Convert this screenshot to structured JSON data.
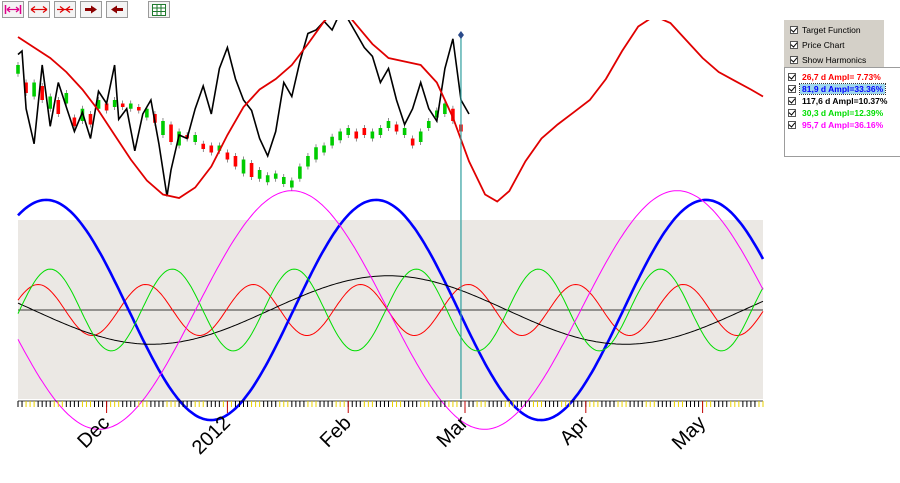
{
  "toolbar": {
    "buttons": [
      {
        "name": "zoom-to-fit-button",
        "icon": "pink-double-arrow-bars-icon",
        "color": "#e0008a"
      },
      {
        "name": "expand-button",
        "icon": "red-double-arrow-icon",
        "color": "#e00000"
      },
      {
        "name": "compress-button",
        "icon": "red-arrows-inward-icon",
        "color": "#e00000"
      },
      {
        "name": "scroll-right-button",
        "icon": "right-arrow-icon",
        "color": "#8b0000"
      },
      {
        "name": "scroll-left-button",
        "icon": "left-arrow-icon",
        "color": "#8b0000"
      },
      {
        "name": "export-excel-button",
        "icon": "spreadsheet-icon",
        "color": "#1f7a2e"
      }
    ]
  },
  "options": [
    {
      "label": "Target Function",
      "checked": true
    },
    {
      "label": "Price Chart",
      "checked": true
    },
    {
      "label": "Show Harmonics",
      "checked": true
    }
  ],
  "harmonics": [
    {
      "label": "26,7 d  Ampl= 7.73%",
      "period": 26.7,
      "amplitude": 7.73,
      "color": "#ff0000",
      "checked": true,
      "selected": false
    },
    {
      "label": "81,9 d  Ampl=33.36%",
      "period": 81.9,
      "amplitude": 33.36,
      "color": "#0000ff",
      "checked": true,
      "selected": true
    },
    {
      "label": "117,6 d  Ampl=10.37%",
      "period": 117.6,
      "amplitude": 10.37,
      "color": "#000000",
      "checked": true,
      "selected": false
    },
    {
      "label": "30,3 d  Ampl=12.39%",
      "period": 30.3,
      "amplitude": 12.39,
      "color": "#00dd00",
      "checked": true,
      "selected": false
    },
    {
      "label": "95,7 d  Ampl=36.16%",
      "period": 95.7,
      "amplitude": 36.16,
      "color": "#ff00ff",
      "checked": true,
      "selected": false
    }
  ],
  "axis": {
    "month_labels": [
      "Dec",
      "2012",
      "Feb",
      "Mar",
      "Apr",
      "May"
    ]
  },
  "colors": {
    "price_line": "#000000",
    "target_function": "#e00000",
    "candle_up": "#00cc00",
    "candle_down": "#ff0000",
    "cursor": "#2f9f9f",
    "harmonics_background": "#ebe8e4"
  },
  "chart_data": {
    "type": "line",
    "x_range_days": [
      0,
      185
    ],
    "cursor_day": 110,
    "price_series": [
      [
        0,
        0.86
      ],
      [
        1,
        0.88
      ],
      [
        2,
        0.55
      ],
      [
        4,
        0.35
      ],
      [
        6,
        0.8
      ],
      [
        8,
        0.45
      ],
      [
        10,
        0.7
      ],
      [
        12,
        0.56
      ],
      [
        14,
        0.42
      ],
      [
        16,
        0.53
      ],
      [
        18,
        0.38
      ],
      [
        20,
        0.65
      ],
      [
        22,
        0.58
      ],
      [
        24,
        0.8
      ],
      [
        25,
        0.49
      ],
      [
        27,
        0.55
      ],
      [
        29,
        0.31
      ],
      [
        31,
        0.52
      ],
      [
        33,
        0.6
      ],
      [
        35,
        0.35
      ],
      [
        37,
        0.05
      ],
      [
        38,
        0.2
      ],
      [
        40,
        0.4
      ],
      [
        42,
        0.38
      ],
      [
        44,
        0.55
      ],
      [
        46,
        0.68
      ],
      [
        48,
        0.52
      ],
      [
        50,
        0.78
      ],
      [
        52,
        0.9
      ],
      [
        54,
        0.72
      ],
      [
        56,
        0.6
      ],
      [
        58,
        0.54
      ],
      [
        60,
        0.38
      ],
      [
        62,
        0.28
      ],
      [
        64,
        0.42
      ],
      [
        66,
        0.7
      ],
      [
        68,
        0.62
      ],
      [
        70,
        0.82
      ],
      [
        72,
        0.98
      ],
      [
        74,
        1.0
      ],
      [
        76,
        1.05
      ],
      [
        78,
        1.0
      ],
      [
        80,
        1.1
      ],
      [
        82,
        1.06
      ],
      [
        84,
        0.98
      ],
      [
        86,
        0.9
      ],
      [
        88,
        0.85
      ],
      [
        90,
        0.7
      ],
      [
        92,
        0.78
      ],
      [
        94,
        0.6
      ],
      [
        96,
        0.46
      ],
      [
        98,
        0.55
      ],
      [
        100,
        0.7
      ],
      [
        102,
        0.55
      ],
      [
        104,
        0.48
      ],
      [
        106,
        0.78
      ],
      [
        108,
        0.95
      ],
      [
        110,
        0.6
      ],
      [
        112,
        0.52
      ]
    ],
    "candles": [
      [
        0,
        0.75,
        0.8
      ],
      [
        2,
        0.7,
        0.64
      ],
      [
        4,
        0.62,
        0.7
      ],
      [
        6,
        0.68,
        0.6
      ],
      [
        8,
        0.55,
        0.62
      ],
      [
        10,
        0.6,
        0.52
      ],
      [
        12,
        0.58,
        0.64
      ],
      [
        14,
        0.5,
        0.45
      ],
      [
        16,
        0.48,
        0.55
      ],
      [
        18,
        0.52,
        0.46
      ],
      [
        20,
        0.55,
        0.6
      ],
      [
        22,
        0.58,
        0.54
      ],
      [
        24,
        0.56,
        0.6
      ],
      [
        26,
        0.58,
        0.56
      ],
      [
        28,
        0.55,
        0.58
      ],
      [
        30,
        0.56,
        0.54
      ],
      [
        32,
        0.5,
        0.55
      ],
      [
        34,
        0.52,
        0.47
      ],
      [
        36,
        0.4,
        0.48
      ],
      [
        38,
        0.46,
        0.36
      ],
      [
        40,
        0.34,
        0.42
      ],
      [
        42,
        0.4,
        0.38
      ],
      [
        44,
        0.36,
        0.4
      ],
      [
        46,
        0.35,
        0.32
      ],
      [
        48,
        0.34,
        0.3
      ],
      [
        50,
        0.31,
        0.34
      ],
      [
        52,
        0.3,
        0.26
      ],
      [
        54,
        0.28,
        0.22
      ],
      [
        56,
        0.18,
        0.26
      ],
      [
        58,
        0.24,
        0.16
      ],
      [
        60,
        0.15,
        0.2
      ],
      [
        62,
        0.13,
        0.17
      ],
      [
        64,
        0.15,
        0.18
      ],
      [
        66,
        0.12,
        0.16
      ],
      [
        68,
        0.1,
        0.14
      ],
      [
        70,
        0.15,
        0.22
      ],
      [
        72,
        0.22,
        0.28
      ],
      [
        74,
        0.26,
        0.33
      ],
      [
        76,
        0.3,
        0.34
      ],
      [
        78,
        0.34,
        0.39
      ],
      [
        80,
        0.37,
        0.42
      ],
      [
        82,
        0.4,
        0.44
      ],
      [
        84,
        0.42,
        0.38
      ],
      [
        86,
        0.44,
        0.4
      ],
      [
        88,
        0.38,
        0.42
      ],
      [
        90,
        0.4,
        0.44
      ],
      [
        92,
        0.44,
        0.48
      ],
      [
        94,
        0.46,
        0.42
      ],
      [
        96,
        0.4,
        0.44
      ],
      [
        98,
        0.38,
        0.34
      ],
      [
        100,
        0.36,
        0.42
      ],
      [
        102,
        0.44,
        0.48
      ],
      [
        104,
        0.5,
        0.54
      ],
      [
        106,
        0.52,
        0.58
      ],
      [
        108,
        0.55,
        0.48
      ],
      [
        110,
        0.46,
        0.42
      ]
    ],
    "target_function": [
      [
        0,
        0.96
      ],
      [
        4,
        0.9
      ],
      [
        8,
        0.84
      ],
      [
        12,
        0.76
      ],
      [
        16,
        0.66
      ],
      [
        20,
        0.54
      ],
      [
        24,
        0.4
      ],
      [
        28,
        0.26
      ],
      [
        32,
        0.14
      ],
      [
        36,
        0.06
      ],
      [
        40,
        0.04
      ],
      [
        44,
        0.1
      ],
      [
        48,
        0.22
      ],
      [
        52,
        0.4
      ],
      [
        56,
        0.56
      ],
      [
        60,
        0.66
      ],
      [
        64,
        0.72
      ],
      [
        68,
        0.8
      ],
      [
        72,
        0.92
      ],
      [
        76,
        1.05
      ],
      [
        80,
        1.14
      ],
      [
        84,
        1.03
      ],
      [
        88,
        0.92
      ],
      [
        92,
        0.84
      ],
      [
        96,
        0.82
      ],
      [
        100,
        0.8
      ],
      [
        104,
        0.7
      ],
      [
        108,
        0.5
      ],
      [
        112,
        0.25
      ],
      [
        116,
        0.06
      ],
      [
        119,
        0.02
      ],
      [
        122,
        0.08
      ],
      [
        126,
        0.25
      ],
      [
        130,
        0.38
      ],
      [
        134,
        0.46
      ],
      [
        138,
        0.53
      ],
      [
        142,
        0.6
      ],
      [
        146,
        0.72
      ],
      [
        150,
        0.88
      ],
      [
        154,
        1.02
      ],
      [
        158,
        1.08
      ],
      [
        162,
        1.04
      ],
      [
        166,
        0.94
      ],
      [
        170,
        0.84
      ],
      [
        174,
        0.76
      ],
      [
        178,
        0.71
      ],
      [
        182,
        0.66
      ],
      [
        185,
        0.62
      ]
    ],
    "month_ticks_days": [
      22,
      52,
      82,
      111,
      141,
      170
    ]
  }
}
